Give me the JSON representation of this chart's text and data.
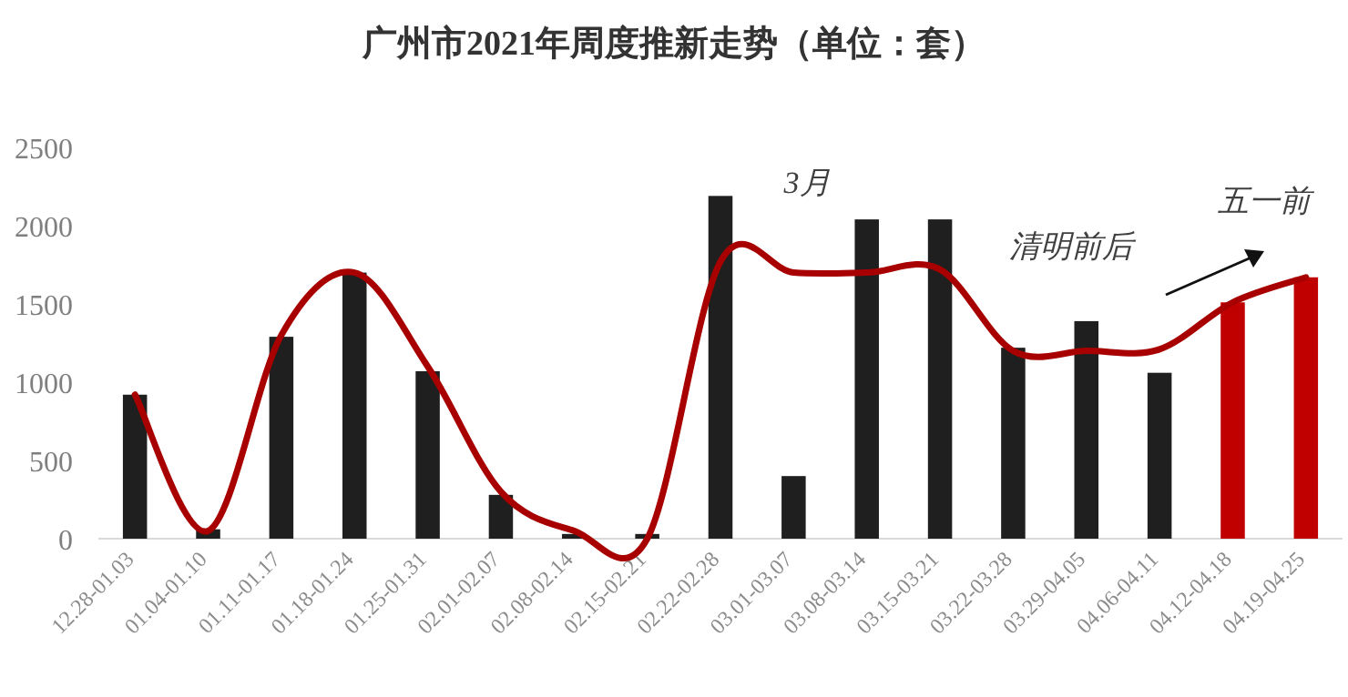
{
  "chart_data": {
    "type": "bar",
    "title": "广州市2021年周度推新走势（单位：套）",
    "categories": [
      "12.28-01.03",
      "01.04-01.10",
      "01.11-01.17",
      "01.18-01.24",
      "01.25-01.31",
      "02.01-02.07",
      "02.08-02.14",
      "02.15-02.21",
      "02.22-02.28",
      "03.01-03.07",
      "03.08-03.14",
      "03.15-03.21",
      "03.22-03.28",
      "03.29-04.05",
      "04.06-04.11",
      "04.12-04.18",
      "04.19-04.25"
    ],
    "series": [
      {
        "colors": [
          "#1f1f1f",
          "#1f1f1f",
          "#1f1f1f",
          "#1f1f1f",
          "#1f1f1f",
          "#1f1f1f",
          "#1f1f1f",
          "#1f1f1f",
          "#1f1f1f",
          "#1f1f1f",
          "#1f1f1f",
          "#1f1f1f",
          "#1f1f1f",
          "#1f1f1f",
          "#1f1f1f",
          "#c00000",
          "#c00000"
        ],
        "values": [
          920,
          60,
          1290,
          1700,
          1070,
          280,
          30,
          30,
          2190,
          400,
          2040,
          2040,
          1220,
          1390,
          1060,
          1510,
          1670
        ]
      },
      {
        "type": "line",
        "color": "#a80000",
        "values": [
          920,
          50,
          1300,
          1700,
          1100,
          300,
          50,
          0,
          1770,
          1700,
          1700,
          1720,
          1200,
          1200,
          1210,
          1510,
          1670
        ]
      }
    ],
    "ylim": [
      0,
      2500
    ],
    "yticks": [
      0,
      500,
      1000,
      1500,
      2000,
      2500
    ],
    "grid": false,
    "annotations": [
      "3月",
      "清明前后",
      "五一前"
    ]
  }
}
